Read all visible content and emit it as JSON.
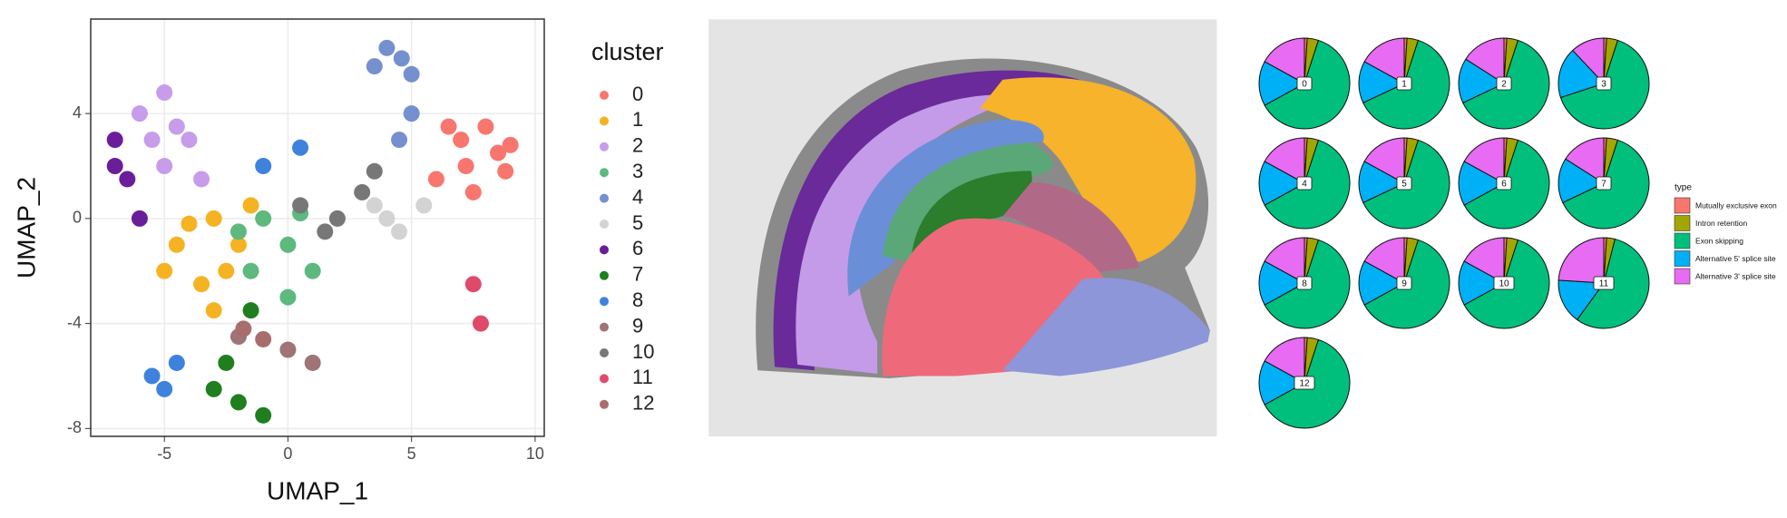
{
  "chart_data": [
    {
      "type": "scatter",
      "xlabel": "UMAP_1",
      "ylabel": "UMAP_2",
      "xlim": [
        -7.98,
        10.37
      ],
      "ylim": [
        -8.3,
        7.6
      ],
      "xticks": [
        -5,
        0,
        5,
        10
      ],
      "yticks": [
        -8,
        -4,
        0,
        4
      ],
      "grid": true,
      "legend_title": "cluster",
      "series": [
        {
          "name": "0",
          "color": "#F8766D",
          "x": [
            6,
            7,
            8.5,
            7.5,
            9,
            6.5,
            8,
            7.2,
            8.8
          ],
          "y": [
            1.5,
            3,
            2.5,
            1,
            2.8,
            3.5,
            3.5,
            2,
            1.8
          ]
        },
        {
          "name": "1",
          "color": "#F5B323",
          "x": [
            -4.5,
            -3,
            -3.5,
            -2,
            -5,
            -3,
            -1.5,
            -4,
            -2.5
          ],
          "y": [
            -1,
            0,
            -2.5,
            -1,
            -2,
            -3.5,
            0.5,
            -0.2,
            -2
          ]
        },
        {
          "name": "2",
          "color": "#C69CEB",
          "x": [
            -6,
            -5,
            -4,
            -5,
            -3.5,
            -4.5,
            -5.5
          ],
          "y": [
            4,
            4.8,
            3,
            2,
            1.5,
            3.5,
            3
          ]
        },
        {
          "name": "3",
          "color": "#5DB97E",
          "x": [
            -1,
            0,
            -1.5,
            1,
            0,
            -2,
            0.5
          ],
          "y": [
            0,
            -1,
            -2,
            -2,
            -3,
            -0.5,
            0.2
          ]
        },
        {
          "name": "4",
          "color": "#7590CF",
          "x": [
            4,
            5,
            5,
            4.5,
            3.5,
            4.6
          ],
          "y": [
            6.5,
            5.5,
            4,
            3,
            5.8,
            6.1
          ]
        },
        {
          "name": "5",
          "color": "#D3D3D3",
          "x": [
            3.5,
            4.5,
            5.5,
            4
          ],
          "y": [
            0.5,
            -0.5,
            0.5,
            0
          ]
        },
        {
          "name": "6",
          "color": "#6A1E9A",
          "x": [
            -7,
            -6.5,
            -6,
            -7
          ],
          "y": [
            3,
            1.5,
            0,
            2
          ]
        },
        {
          "name": "7",
          "color": "#1F7F1F",
          "x": [
            -3,
            -2,
            -1,
            -2.5,
            -1.5
          ],
          "y": [
            -6.5,
            -7,
            -7.5,
            -5.5,
            -3.5
          ]
        },
        {
          "name": "8",
          "color": "#3E82DE",
          "x": [
            -5.5,
            -4.5,
            -5,
            0.5,
            -1
          ],
          "y": [
            -6,
            -5.5,
            -6.5,
            2.7,
            2
          ]
        },
        {
          "name": "9",
          "color": "#9E7477",
          "x": [
            -2,
            0,
            1
          ],
          "y": [
            -4.5,
            -5,
            -5.5
          ]
        },
        {
          "name": "10",
          "color": "#777777",
          "x": [
            0.5,
            2,
            3,
            3.5,
            1.5
          ],
          "y": [
            0.5,
            0,
            1,
            1.8,
            -0.5
          ]
        },
        {
          "name": "11",
          "color": "#E04A6A",
          "x": [
            7.5,
            7.8
          ],
          "y": [
            -2.5,
            -4
          ]
        },
        {
          "name": "12",
          "color": "#A86E6E",
          "x": [
            -1.8,
            -1
          ],
          "y": [
            -4.2,
            -4.6
          ]
        }
      ]
    },
    {
      "type": "pie",
      "legend_title": "type",
      "categories": [
        "Mutually exclusive exon",
        "Intron retention",
        "Exon skipping",
        "Alternative 5' splice site",
        "Alternative 3' splice site"
      ],
      "colors": [
        "#F8766D",
        "#A3A500",
        "#00BF7D",
        "#00B0F6",
        "#E76BF3"
      ],
      "pies": [
        {
          "label": "0",
          "values": [
            1,
            4,
            62,
            16,
            17
          ]
        },
        {
          "label": "1",
          "values": [
            1,
            4,
            63,
            15,
            17
          ]
        },
        {
          "label": "2",
          "values": [
            1,
            4,
            63,
            16,
            16
          ]
        },
        {
          "label": "3",
          "values": [
            1,
            4,
            65,
            18,
            12
          ]
        },
        {
          "label": "4",
          "values": [
            1,
            4,
            62,
            16,
            17
          ]
        },
        {
          "label": "5",
          "values": [
            1,
            4,
            63,
            15,
            17
          ]
        },
        {
          "label": "6",
          "values": [
            1,
            4,
            62,
            16,
            17
          ]
        },
        {
          "label": "7",
          "values": [
            1,
            4,
            63,
            16,
            16
          ]
        },
        {
          "label": "8",
          "values": [
            1,
            4,
            62,
            16,
            17
          ]
        },
        {
          "label": "9",
          "values": [
            1,
            4,
            62,
            16,
            17
          ]
        },
        {
          "label": "10",
          "values": [
            1,
            4,
            62,
            16,
            17
          ]
        },
        {
          "label": "11",
          "values": [
            1,
            3,
            56,
            16,
            24
          ]
        },
        {
          "label": "12",
          "values": [
            1,
            4,
            62,
            16,
            17
          ]
        }
      ]
    }
  ]
}
